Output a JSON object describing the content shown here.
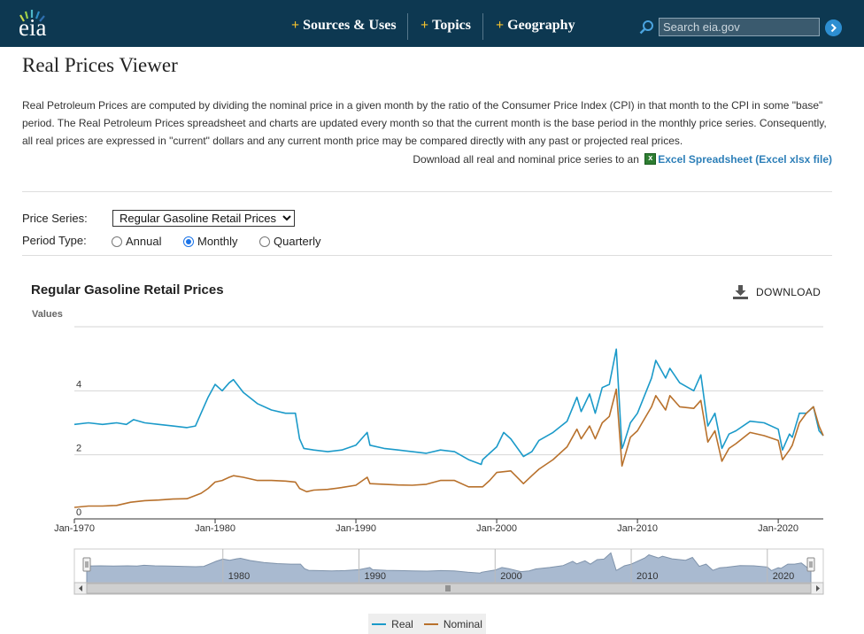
{
  "header": {
    "logo": "eia",
    "nav": [
      {
        "label": "Sources & Uses"
      },
      {
        "label": "Topics"
      },
      {
        "label": "Geography"
      }
    ],
    "search_placeholder": "Search eia.gov"
  },
  "page": {
    "title": "Real Prices Viewer",
    "intro": "Real Petroleum Prices are computed by dividing the nominal price in a given month by the ratio of the Consumer Price Index (CPI) in that month to the CPI in some \"base\" period. The Real Petroleum Prices spreadsheet and charts are updated every month so that the current month is the base period in the monthly price series. Consequently, all real prices are expressed in \"current\" dollars and any current month price may be compared directly with any past or projected real prices.",
    "download_text": "Download all real and nominal price series to an",
    "download_link": "Excel Spreadsheet (Excel xlsx file)"
  },
  "controls": {
    "series_label": "Price Series:",
    "series_value": "Regular Gasoline Retail Prices",
    "period_label": "Period Type:",
    "period_options": [
      {
        "label": "Annual",
        "selected": false
      },
      {
        "label": "Monthly",
        "selected": true
      },
      {
        "label": "Quarterly",
        "selected": false
      }
    ]
  },
  "chart_header": {
    "download_label": "DOWNLOAD"
  },
  "colors": {
    "header_bg": "#0d3851",
    "accent_yellow": "#f2c12e",
    "real": "#1b9ac9",
    "nominal": "#b8712c",
    "navigator_fill": "#a9bad0"
  },
  "chart_data": {
    "type": "line",
    "title": "Regular Gasoline Retail Prices",
    "ylabel": "Values",
    "xlabel": "",
    "ylim": [
      0,
      6
    ],
    "y_ticks": [
      0,
      2,
      4
    ],
    "x_ticks": [
      "Jan-1970",
      "Jan-1980",
      "Jan-1990",
      "Jan-2000",
      "Jan-2010",
      "Jan-2020"
    ],
    "x_range": [
      1970.0,
      2023.2
    ],
    "grid": true,
    "legend_position": "bottom",
    "navigator_ticks": [
      "1980",
      "1990",
      "2000",
      "2010",
      "2020"
    ],
    "series": [
      {
        "name": "Real",
        "x": [
          1970.0,
          1971.0,
          1972.0,
          1973.0,
          1973.7,
          1974.2,
          1975.0,
          1976.0,
          1977.0,
          1978.0,
          1978.6,
          1979.0,
          1979.5,
          1980.0,
          1980.5,
          1981.0,
          1981.3,
          1982.0,
          1983.0,
          1984.0,
          1985.0,
          1985.7,
          1986.0,
          1986.3,
          1987.0,
          1988.0,
          1989.0,
          1990.0,
          1990.8,
          1991.0,
          1992.0,
          1993.0,
          1994.0,
          1995.0,
          1996.0,
          1997.0,
          1998.0,
          1998.9,
          1999.0,
          1999.5,
          2000.0,
          2000.5,
          2001.0,
          2001.9,
          2002.5,
          2003.0,
          2004.0,
          2005.0,
          2005.7,
          2006.0,
          2006.6,
          2007.0,
          2007.5,
          2008.0,
          2008.5,
          2008.9,
          2009.0,
          2009.5,
          2010.0,
          2011.0,
          2011.3,
          2012.0,
          2012.3,
          2013.0,
          2014.0,
          2014.5,
          2015.0,
          2015.5,
          2016.0,
          2016.5,
          2017.0,
          2018.0,
          2019.0,
          2020.0,
          2020.3,
          2020.8,
          2021.0,
          2021.5,
          2022.0,
          2022.5,
          2022.9,
          2023.2
        ],
        "y": [
          2.95,
          3.0,
          2.95,
          3.0,
          2.95,
          3.1,
          3.0,
          2.95,
          2.9,
          2.85,
          2.9,
          3.3,
          3.8,
          4.2,
          4.0,
          4.25,
          4.35,
          3.95,
          3.6,
          3.4,
          3.3,
          3.3,
          2.5,
          2.2,
          2.15,
          2.1,
          2.15,
          2.3,
          2.7,
          2.3,
          2.2,
          2.15,
          2.1,
          2.05,
          2.15,
          2.1,
          1.85,
          1.7,
          1.85,
          2.05,
          2.25,
          2.7,
          2.5,
          1.95,
          2.1,
          2.45,
          2.7,
          3.05,
          3.8,
          3.35,
          3.9,
          3.3,
          4.1,
          4.2,
          5.3,
          2.2,
          2.3,
          3.0,
          3.3,
          4.4,
          4.95,
          4.4,
          4.7,
          4.25,
          4.0,
          4.5,
          2.9,
          3.3,
          2.2,
          2.65,
          2.75,
          3.05,
          3.0,
          2.8,
          2.15,
          2.65,
          2.55,
          3.3,
          3.3,
          3.5,
          2.75,
          2.6
        ]
      },
      {
        "name": "Nominal",
        "x": [
          1970.0,
          1971.0,
          1972.0,
          1973.0,
          1974.0,
          1975.0,
          1976.0,
          1977.0,
          1978.0,
          1979.0,
          1979.5,
          1980.0,
          1980.5,
          1981.0,
          1981.3,
          1982.0,
          1983.0,
          1984.0,
          1985.0,
          1985.7,
          1986.0,
          1986.5,
          1987.0,
          1988.0,
          1989.0,
          1990.0,
          1990.8,
          1991.0,
          1992.0,
          1993.0,
          1994.0,
          1995.0,
          1996.0,
          1997.0,
          1998.0,
          1999.0,
          1999.5,
          2000.0,
          2001.0,
          2001.9,
          2002.5,
          2003.0,
          2004.0,
          2005.0,
          2005.7,
          2006.0,
          2006.6,
          2007.0,
          2007.5,
          2008.0,
          2008.5,
          2008.9,
          2009.0,
          2009.5,
          2010.0,
          2011.0,
          2011.3,
          2012.0,
          2012.3,
          2013.0,
          2014.0,
          2014.5,
          2015.0,
          2015.5,
          2016.0,
          2016.5,
          2017.0,
          2018.0,
          2019.0,
          2020.0,
          2020.3,
          2020.8,
          2021.0,
          2021.5,
          2022.0,
          2022.5,
          2022.9,
          2023.2
        ],
        "y": [
          0.36,
          0.4,
          0.4,
          0.42,
          0.52,
          0.57,
          0.59,
          0.62,
          0.63,
          0.8,
          0.95,
          1.15,
          1.2,
          1.3,
          1.35,
          1.3,
          1.2,
          1.2,
          1.18,
          1.15,
          0.95,
          0.85,
          0.9,
          0.92,
          0.98,
          1.05,
          1.3,
          1.1,
          1.08,
          1.06,
          1.05,
          1.08,
          1.2,
          1.2,
          1.0,
          1.0,
          1.2,
          1.45,
          1.5,
          1.1,
          1.35,
          1.55,
          1.85,
          2.25,
          2.8,
          2.5,
          2.9,
          2.5,
          3.0,
          3.2,
          4.05,
          1.65,
          1.8,
          2.55,
          2.75,
          3.5,
          3.85,
          3.4,
          3.85,
          3.5,
          3.45,
          3.7,
          2.4,
          2.75,
          1.8,
          2.2,
          2.35,
          2.7,
          2.6,
          2.45,
          1.85,
          2.15,
          2.3,
          3.0,
          3.3,
          3.5,
          2.9,
          2.6
        ]
      }
    ]
  }
}
